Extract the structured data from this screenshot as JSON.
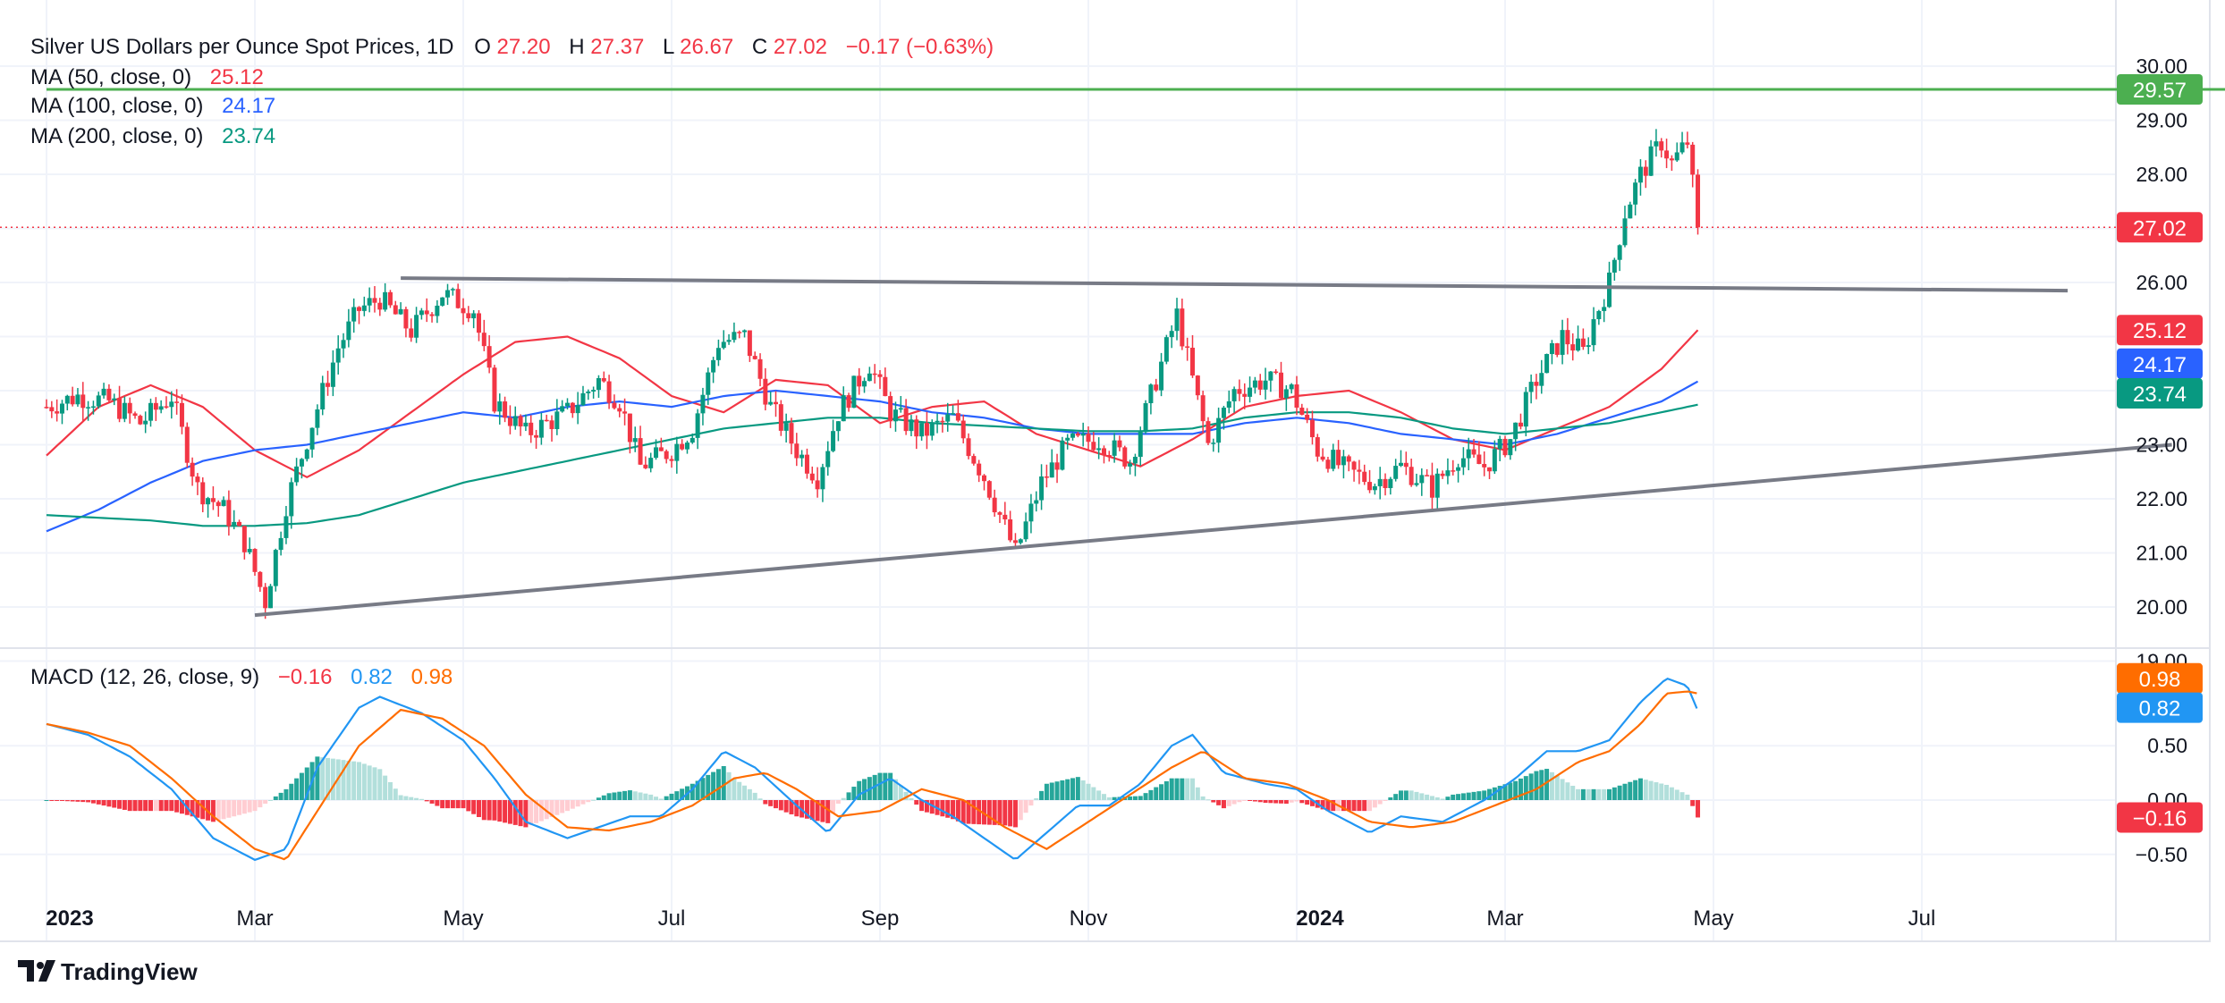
{
  "header": {
    "symbol": "Silver US Dollars per Ounce Spot Prices, 1D",
    "o_label": "O",
    "o_val": "27.20",
    "h_label": "H",
    "h_val": "27.37",
    "l_label": "L",
    "l_val": "26.67",
    "c_label": "C",
    "c_val": "27.02",
    "change": "−0.17 (−0.63%)"
  },
  "indicators": [
    {
      "label": "MA (50, close, 0)",
      "value": "25.12",
      "color": "#f23645"
    },
    {
      "label": "MA (100, close, 0)",
      "value": "24.17",
      "color": "#2962ff"
    },
    {
      "label": "MA (200, close, 0)",
      "value": "23.74",
      "color": "#089981"
    }
  ],
  "macd_header": {
    "label": "MACD (12, 26, close, 9)",
    "hist": "−0.16",
    "macd": "0.82",
    "signal": "0.98"
  },
  "price_badges": {
    "resistance": "29.57",
    "last": "27.02",
    "ma50": "25.12",
    "ma100": "24.17",
    "ma200": "23.74"
  },
  "macd_badges": {
    "signal": "0.98",
    "macd": "0.82",
    "hist": "−0.16"
  },
  "logo_text": "TradingView",
  "chart_data": {
    "type": "candlestick",
    "price_axis": {
      "ticks": [
        "30.00",
        "29.00",
        "28.00",
        "27.00",
        "26.00",
        "25.00",
        "24.00",
        "23.00",
        "22.00",
        "21.00",
        "20.00",
        "19.00"
      ],
      "range": [
        19,
        30
      ]
    },
    "macd_axis": {
      "ticks": [
        "0.50",
        "0.00",
        "−0.50"
      ],
      "range": [
        -0.75,
        1.25
      ]
    },
    "time_axis": [
      {
        "label": "2023",
        "bold": true,
        "m": 0
      },
      {
        "label": "Mar",
        "bold": false,
        "m": 2
      },
      {
        "label": "May",
        "bold": false,
        "m": 4
      },
      {
        "label": "Jul",
        "bold": false,
        "m": 6
      },
      {
        "label": "Sep",
        "bold": false,
        "m": 8
      },
      {
        "label": "Nov",
        "bold": false,
        "m": 10
      },
      {
        "label": "2024",
        "bold": true,
        "m": 12
      },
      {
        "label": "Mar",
        "bold": false,
        "m": 14
      },
      {
        "label": "May",
        "bold": false,
        "m": 16
      },
      {
        "label": "Jul",
        "bold": false,
        "m": 18
      }
    ],
    "close_anchors": [
      [
        0,
        23.7
      ],
      [
        0.3,
        23.9
      ],
      [
        0.6,
        23.8
      ],
      [
        0.9,
        23.4
      ],
      [
        1.2,
        23.9
      ],
      [
        1.45,
        22.2
      ],
      [
        1.7,
        21.8
      ],
      [
        1.9,
        21.2
      ],
      [
        2.1,
        20.1
      ],
      [
        2.3,
        21.9
      ],
      [
        2.55,
        23.4
      ],
      [
        2.8,
        24.8
      ],
      [
        3.0,
        25.5
      ],
      [
        3.2,
        25.7
      ],
      [
        3.5,
        25.1
      ],
      [
        3.8,
        25.8
      ],
      [
        4.1,
        25.5
      ],
      [
        4.3,
        23.8
      ],
      [
        4.6,
        23.2
      ],
      [
        5.0,
        23.6
      ],
      [
        5.3,
        24.2
      ],
      [
        5.5,
        23.8
      ],
      [
        5.7,
        22.6
      ],
      [
        6.0,
        22.9
      ],
      [
        6.2,
        23.3
      ],
      [
        6.45,
        24.9
      ],
      [
        6.7,
        25.0
      ],
      [
        6.95,
        23.7
      ],
      [
        7.2,
        22.9
      ],
      [
        7.4,
        22.4
      ],
      [
        7.6,
        23.6
      ],
      [
        7.9,
        24.5
      ],
      [
        8.1,
        23.6
      ],
      [
        8.4,
        23.2
      ],
      [
        8.7,
        23.5
      ],
      [
        9.0,
        22.4
      ],
      [
        9.3,
        21.0
      ],
      [
        9.55,
        22.3
      ],
      [
        9.8,
        23.0
      ],
      [
        10.1,
        23.1
      ],
      [
        10.4,
        22.7
      ],
      [
        10.6,
        23.9
      ],
      [
        10.85,
        25.4
      ],
      [
        11.0,
        24.2
      ],
      [
        11.15,
        23.0
      ],
      [
        11.4,
        24.0
      ],
      [
        11.7,
        24.2
      ],
      [
        11.95,
        24.0
      ],
      [
        12.2,
        22.9
      ],
      [
        12.5,
        22.5
      ],
      [
        12.75,
        22.3
      ],
      [
        13.0,
        22.6
      ],
      [
        13.3,
        22.2
      ],
      [
        13.55,
        22.8
      ],
      [
        13.8,
        22.6
      ],
      [
        14.05,
        23.1
      ],
      [
        14.3,
        24.2
      ],
      [
        14.55,
        25.0
      ],
      [
        14.75,
        24.7
      ],
      [
        14.85,
        25.3
      ],
      [
        15.0,
        26.0
      ],
      [
        15.15,
        27.3
      ],
      [
        15.3,
        28.0
      ],
      [
        15.5,
        28.6
      ],
      [
        15.6,
        28.2
      ],
      [
        15.75,
        28.6
      ],
      [
        15.85,
        27.02
      ]
    ],
    "moving_averages": [
      {
        "name": "MA (50, close, 0)",
        "color": "#f23645",
        "points": [
          [
            0,
            22.8
          ],
          [
            0.5,
            23.7
          ],
          [
            1.0,
            24.1
          ],
          [
            1.5,
            23.7
          ],
          [
            2.0,
            22.9
          ],
          [
            2.5,
            22.4
          ],
          [
            3.0,
            22.9
          ],
          [
            3.5,
            23.6
          ],
          [
            4.0,
            24.3
          ],
          [
            4.5,
            24.9
          ],
          [
            5.0,
            25.0
          ],
          [
            5.5,
            24.6
          ],
          [
            6.0,
            23.9
          ],
          [
            6.5,
            23.6
          ],
          [
            7.0,
            24.2
          ],
          [
            7.5,
            24.1
          ],
          [
            8.0,
            23.4
          ],
          [
            8.5,
            23.7
          ],
          [
            9.0,
            23.8
          ],
          [
            9.5,
            23.2
          ],
          [
            10.0,
            22.9
          ],
          [
            10.5,
            22.6
          ],
          [
            11.0,
            23.1
          ],
          [
            11.5,
            23.7
          ],
          [
            12.0,
            23.9
          ],
          [
            12.5,
            24.0
          ],
          [
            13.0,
            23.6
          ],
          [
            13.5,
            23.1
          ],
          [
            14.0,
            22.9
          ],
          [
            14.5,
            23.3
          ],
          [
            15.0,
            23.7
          ],
          [
            15.5,
            24.4
          ],
          [
            15.85,
            25.12
          ]
        ]
      },
      {
        "name": "MA (100, close, 0)",
        "color": "#2962ff",
        "points": [
          [
            0,
            21.4
          ],
          [
            0.5,
            21.8
          ],
          [
            1.0,
            22.3
          ],
          [
            1.5,
            22.7
          ],
          [
            2.0,
            22.9
          ],
          [
            2.5,
            23.0
          ],
          [
            3.0,
            23.2
          ],
          [
            3.5,
            23.4
          ],
          [
            4.0,
            23.6
          ],
          [
            4.5,
            23.5
          ],
          [
            5.0,
            23.7
          ],
          [
            5.5,
            23.8
          ],
          [
            6.0,
            23.7
          ],
          [
            6.5,
            23.9
          ],
          [
            7.0,
            24.0
          ],
          [
            7.5,
            23.9
          ],
          [
            8.0,
            23.8
          ],
          [
            8.5,
            23.6
          ],
          [
            9.0,
            23.5
          ],
          [
            9.5,
            23.3
          ],
          [
            10.0,
            23.2
          ],
          [
            10.5,
            23.2
          ],
          [
            11.0,
            23.2
          ],
          [
            11.5,
            23.4
          ],
          [
            12.0,
            23.5
          ],
          [
            12.5,
            23.4
          ],
          [
            13.0,
            23.2
          ],
          [
            13.5,
            23.1
          ],
          [
            14.0,
            23.0
          ],
          [
            14.5,
            23.2
          ],
          [
            15.0,
            23.5
          ],
          [
            15.5,
            23.8
          ],
          [
            15.85,
            24.17
          ]
        ]
      },
      {
        "name": "MA (200, close, 0)",
        "color": "#089981",
        "points": [
          [
            0,
            21.7
          ],
          [
            0.5,
            21.65
          ],
          [
            1.0,
            21.6
          ],
          [
            1.5,
            21.5
          ],
          [
            2.0,
            21.5
          ],
          [
            2.5,
            21.55
          ],
          [
            3.0,
            21.7
          ],
          [
            3.5,
            22.0
          ],
          [
            4.0,
            22.3
          ],
          [
            4.5,
            22.5
          ],
          [
            5.0,
            22.7
          ],
          [
            5.5,
            22.9
          ],
          [
            6.0,
            23.1
          ],
          [
            6.5,
            23.3
          ],
          [
            7.0,
            23.4
          ],
          [
            7.5,
            23.5
          ],
          [
            8.0,
            23.5
          ],
          [
            8.5,
            23.4
          ],
          [
            9.0,
            23.35
          ],
          [
            9.5,
            23.3
          ],
          [
            10.0,
            23.25
          ],
          [
            10.5,
            23.25
          ],
          [
            11.0,
            23.3
          ],
          [
            11.5,
            23.5
          ],
          [
            12.0,
            23.6
          ],
          [
            12.5,
            23.6
          ],
          [
            13.0,
            23.5
          ],
          [
            13.5,
            23.3
          ],
          [
            14.0,
            23.2
          ],
          [
            14.5,
            23.3
          ],
          [
            15.0,
            23.4
          ],
          [
            15.5,
            23.6
          ],
          [
            15.85,
            23.74
          ]
        ]
      }
    ],
    "trendlines": [
      {
        "name": "upper-trendline",
        "color": "#787b86",
        "from": [
          3.4,
          26.08
        ],
        "to": [
          19.4,
          25.85
        ]
      },
      {
        "name": "lower-trendline",
        "color": "#787b86",
        "from": [
          2.0,
          19.85
        ],
        "to": [
          20.4,
          23.0
        ]
      },
      {
        "name": "resistance-line",
        "color": "#4caf50",
        "from": [
          0,
          29.57
        ],
        "to": [
          21.0,
          29.57
        ]
      }
    ],
    "last_price": 27.02,
    "macd_series": [
      {
        "name": "MACD",
        "color": "#2196f3",
        "points": [
          [
            0,
            0.7
          ],
          [
            0.4,
            0.6
          ],
          [
            0.8,
            0.4
          ],
          [
            1.2,
            0.1
          ],
          [
            1.6,
            -0.35
          ],
          [
            2.0,
            -0.55
          ],
          [
            2.3,
            -0.45
          ],
          [
            2.6,
            0.3
          ],
          [
            3.0,
            0.85
          ],
          [
            3.2,
            0.95
          ],
          [
            3.6,
            0.8
          ],
          [
            4.0,
            0.55
          ],
          [
            4.3,
            0.2
          ],
          [
            4.6,
            -0.2
          ],
          [
            5.0,
            -0.35
          ],
          [
            5.3,
            -0.25
          ],
          [
            5.6,
            -0.15
          ],
          [
            5.9,
            -0.15
          ],
          [
            6.2,
            0.1
          ],
          [
            6.5,
            0.45
          ],
          [
            6.8,
            0.3
          ],
          [
            7.2,
            -0.05
          ],
          [
            7.5,
            -0.3
          ],
          [
            7.8,
            0.05
          ],
          [
            8.1,
            0.2
          ],
          [
            8.4,
            0.0
          ],
          [
            8.7,
            -0.15
          ],
          [
            9.0,
            -0.35
          ],
          [
            9.3,
            -0.55
          ],
          [
            9.6,
            -0.3
          ],
          [
            9.9,
            -0.05
          ],
          [
            10.2,
            -0.05
          ],
          [
            10.5,
            0.15
          ],
          [
            10.8,
            0.5
          ],
          [
            11.0,
            0.6
          ],
          [
            11.3,
            0.25
          ],
          [
            11.7,
            0.15
          ],
          [
            12.0,
            0.1
          ],
          [
            12.3,
            -0.1
          ],
          [
            12.7,
            -0.3
          ],
          [
            13.0,
            -0.15
          ],
          [
            13.4,
            -0.2
          ],
          [
            13.8,
            0.0
          ],
          [
            14.1,
            0.2
          ],
          [
            14.4,
            0.45
          ],
          [
            14.7,
            0.45
          ],
          [
            15.0,
            0.55
          ],
          [
            15.3,
            0.9
          ],
          [
            15.55,
            1.12
          ],
          [
            15.75,
            1.05
          ],
          [
            15.85,
            0.82
          ]
        ]
      },
      {
        "name": "Signal",
        "color": "#ff6d00",
        "points": [
          [
            0,
            0.7
          ],
          [
            0.4,
            0.62
          ],
          [
            0.8,
            0.5
          ],
          [
            1.2,
            0.2
          ],
          [
            1.6,
            -0.15
          ],
          [
            2.0,
            -0.45
          ],
          [
            2.3,
            -0.55
          ],
          [
            2.6,
            -0.1
          ],
          [
            3.0,
            0.5
          ],
          [
            3.4,
            0.83
          ],
          [
            3.8,
            0.75
          ],
          [
            4.2,
            0.5
          ],
          [
            4.6,
            0.05
          ],
          [
            5.0,
            -0.25
          ],
          [
            5.4,
            -0.28
          ],
          [
            5.8,
            -0.2
          ],
          [
            6.2,
            -0.05
          ],
          [
            6.6,
            0.2
          ],
          [
            6.9,
            0.25
          ],
          [
            7.2,
            0.1
          ],
          [
            7.6,
            -0.15
          ],
          [
            8.0,
            -0.1
          ],
          [
            8.4,
            0.1
          ],
          [
            8.8,
            0.0
          ],
          [
            9.2,
            -0.25
          ],
          [
            9.6,
            -0.45
          ],
          [
            10.0,
            -0.2
          ],
          [
            10.4,
            0.05
          ],
          [
            10.8,
            0.3
          ],
          [
            11.1,
            0.45
          ],
          [
            11.5,
            0.2
          ],
          [
            11.9,
            0.15
          ],
          [
            12.3,
            0.0
          ],
          [
            12.7,
            -0.2
          ],
          [
            13.1,
            -0.25
          ],
          [
            13.5,
            -0.2
          ],
          [
            13.9,
            -0.05
          ],
          [
            14.3,
            0.1
          ],
          [
            14.7,
            0.35
          ],
          [
            15.0,
            0.45
          ],
          [
            15.3,
            0.7
          ],
          [
            15.55,
            0.98
          ],
          [
            15.75,
            1.0
          ],
          [
            15.85,
            0.98
          ]
        ]
      }
    ],
    "histogram_color_positive": "#26a69a",
    "histogram_color_negative": "#f23645"
  }
}
